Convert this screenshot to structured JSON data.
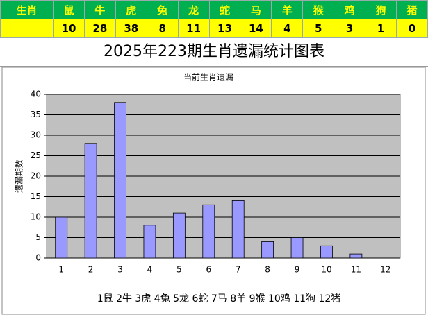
{
  "table": {
    "header": [
      "生肖",
      "鼠",
      "牛",
      "虎",
      "兔",
      "龙",
      "蛇",
      "马",
      "羊",
      "猴",
      "鸡",
      "狗",
      "猪"
    ]
  },
  "page_title": "2025年223期生肖遗漏统计图表",
  "chart_data": {
    "type": "bar",
    "title": "当前生肖遗漏",
    "y_label": "遗漏期数",
    "categories": [
      "1",
      "2",
      "3",
      "4",
      "5",
      "6",
      "7",
      "8",
      "9",
      "10",
      "11",
      "12"
    ],
    "values": [
      10,
      28,
      38,
      8,
      11,
      13,
      14,
      4,
      5,
      3,
      1,
      0
    ],
    "color": "#9999ff",
    "ylim": [
      0,
      40
    ],
    "yticks": [
      0,
      5,
      10,
      15,
      20,
      25,
      30,
      35,
      40
    ],
    "grid": true,
    "legend_text": "1鼠 2牛 3虎 4兔 5龙 6蛇 7马 8羊 9猴 10鸡 11狗 12猪"
  }
}
